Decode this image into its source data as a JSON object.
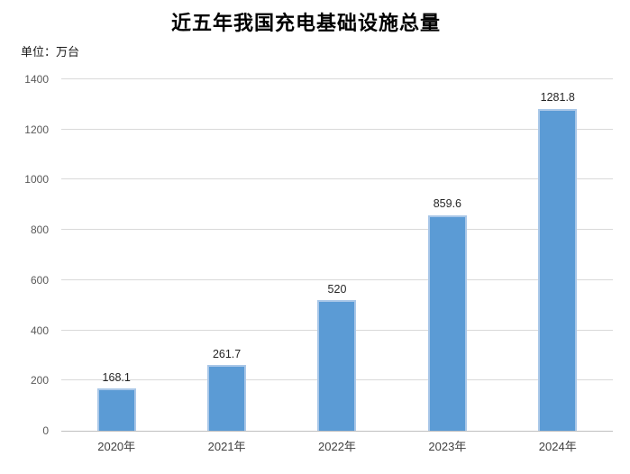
{
  "header": {
    "title": "近五年我国充电基础设施总量",
    "unit_label": "单位：万台"
  },
  "chart_data": {
    "type": "bar",
    "title": "近五年我国充电基础设施总量",
    "unit": "万台",
    "categories": [
      "2020年",
      "2021年",
      "2022年",
      "2023年",
      "2024年"
    ],
    "values": [
      168.1,
      261.7,
      520,
      859.6,
      1281.8
    ],
    "value_labels": [
      "168.1",
      "261.7",
      "520",
      "859.6",
      "1281.8"
    ],
    "xlabel": "",
    "ylabel": "",
    "ylim": [
      0,
      1400
    ],
    "yticks": [
      0,
      200,
      400,
      600,
      800,
      1000,
      1200,
      1400
    ],
    "grid": true,
    "legend": "none",
    "colors": {
      "bar_fill": "#5B9BD5",
      "bar_border": "#A9C7E8",
      "gridline": "#D9D9D9",
      "axis_line": "#BFBFBF",
      "ytick_text": "#595959",
      "xtick_text": "#404040",
      "data_label_text": "#262626",
      "title_text": "#000000"
    }
  }
}
